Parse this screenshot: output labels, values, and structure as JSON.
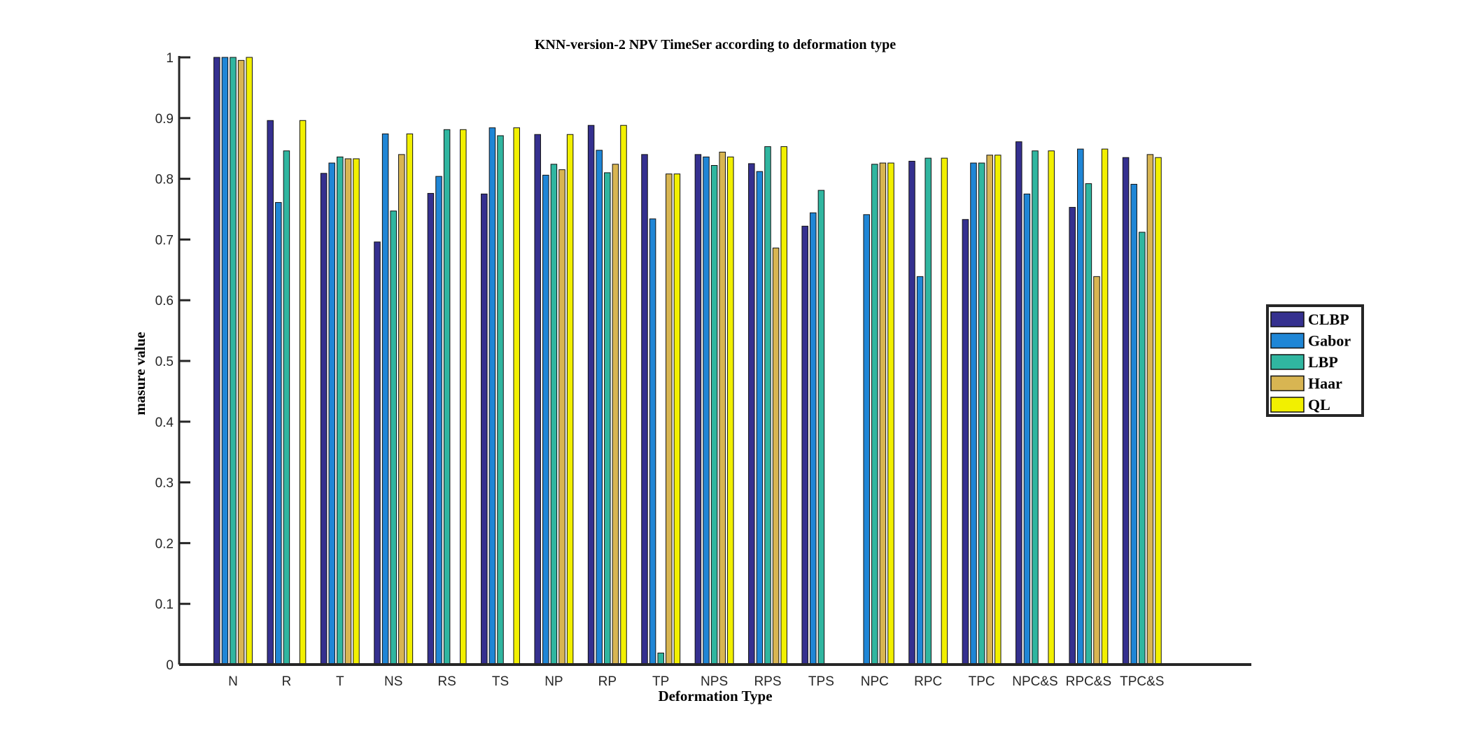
{
  "chart_data": {
    "type": "bar",
    "title": "KNN-version-2 NPV TimeSer according to deformation type",
    "xlabel": "Deformation Type",
    "ylabel": "masure value",
    "ylim": [
      0,
      1
    ],
    "yticks": [
      "0",
      "0.1",
      "0.2",
      "0.3",
      "0.4",
      "0.5",
      "0.6",
      "0.7",
      "0.8",
      "0.9",
      "1"
    ],
    "grid": false,
    "legend_position": "right",
    "categories": [
      "N",
      "R",
      "T",
      "NS",
      "RS",
      "TS",
      "NP",
      "RP",
      "TP",
      "NPS",
      "RPS",
      "TPS",
      "NPC",
      "RPC",
      "TPC",
      "NPC&S",
      "RPC&S",
      "TPC&S"
    ],
    "series": [
      {
        "name": "CLBP",
        "color": "#35308f",
        "values": [
          1.0,
          0.896,
          0.809,
          0.696,
          0.776,
          0.775,
          0.873,
          0.888,
          0.84,
          0.84,
          0.825,
          0.722,
          0,
          0.829,
          0.733,
          0.861,
          0.753,
          0.835
        ]
      },
      {
        "name": "Gabor",
        "color": "#1f86d6",
        "values": [
          1.0,
          0.761,
          0.826,
          0.874,
          0.804,
          0.884,
          0.806,
          0.847,
          0.734,
          0.836,
          0.812,
          0.744,
          0.741,
          0.639,
          0.826,
          0.775,
          0.849,
          0.791
        ]
      },
      {
        "name": "LBP",
        "color": "#30b6a0",
        "values": [
          1.0,
          0.846,
          0.836,
          0.747,
          0.881,
          0.871,
          0.824,
          0.81,
          0.019,
          0.822,
          0.853,
          0.781,
          0.824,
          0.834,
          0.826,
          0.846,
          0.792,
          0.712
        ]
      },
      {
        "name": "Haar",
        "color": "#d8b552",
        "values": [
          0.995,
          0,
          0.833,
          0.84,
          0,
          0,
          0.815,
          0.824,
          0.808,
          0.844,
          0.686,
          0,
          0.826,
          0,
          0.839,
          0,
          0.639,
          0.84
        ]
      },
      {
        "name": "QL",
        "color": "#f2f000",
        "values": [
          1.0,
          0.896,
          0.833,
          0.874,
          0.881,
          0.884,
          0.873,
          0.888,
          0.808,
          0.836,
          0.853,
          0,
          0.826,
          0.834,
          0.839,
          0.846,
          0.849,
          0.835
        ]
      }
    ]
  }
}
